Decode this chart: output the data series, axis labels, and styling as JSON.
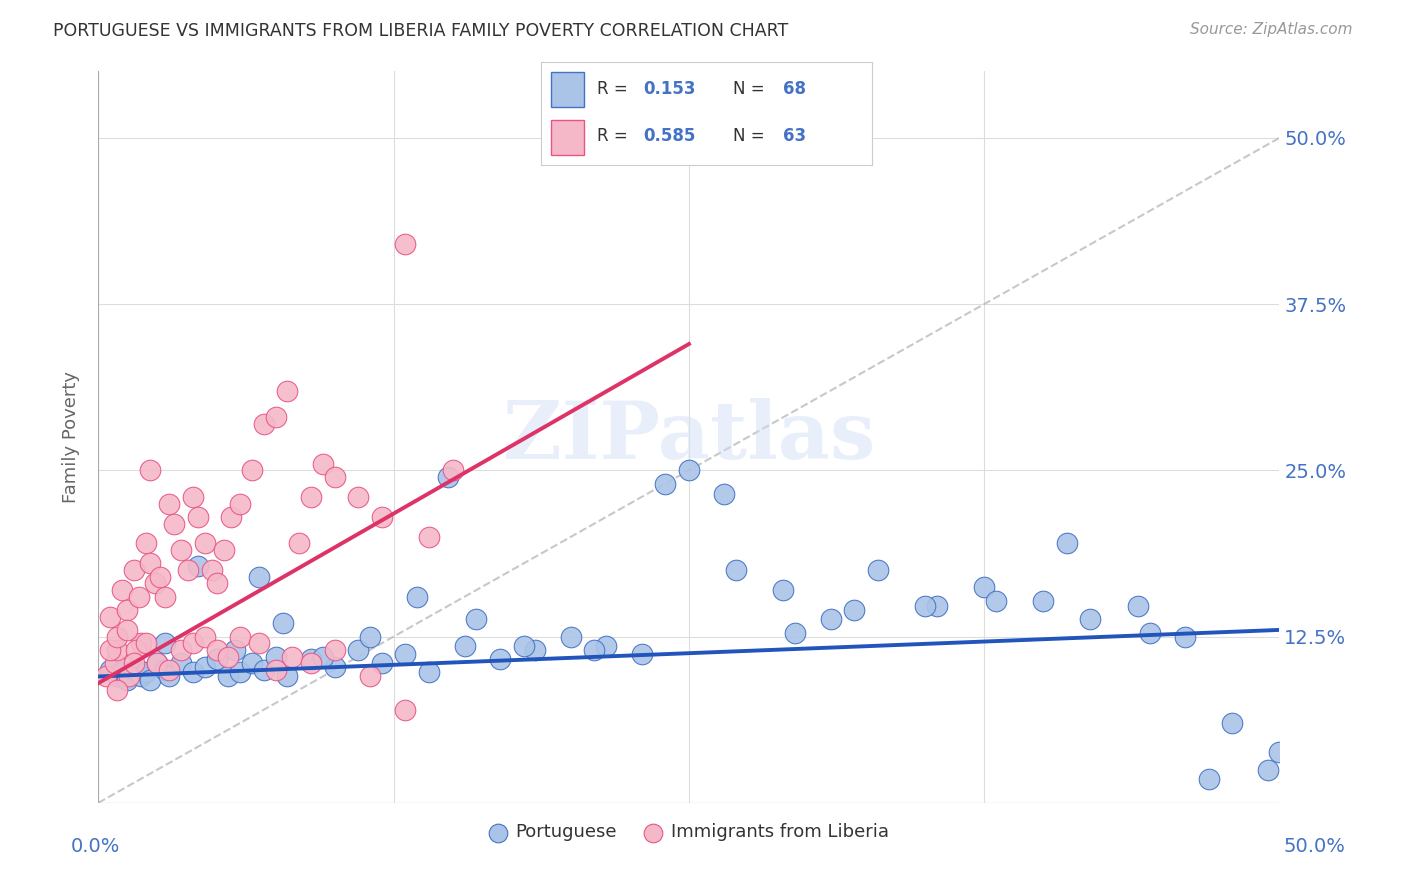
{
  "title": "PORTUGUESE VS IMMIGRANTS FROM LIBERIA FAMILY POVERTY CORRELATION CHART",
  "source": "Source: ZipAtlas.com",
  "ylabel": "Family Poverty",
  "xlim": [
    0.0,
    0.5
  ],
  "ylim": [
    0.0,
    0.55
  ],
  "ytick_positions": [
    0.0,
    0.125,
    0.25,
    0.375,
    0.5
  ],
  "ytick_labels": [
    "",
    "12.5%",
    "25.0%",
    "37.5%",
    "50.0%"
  ],
  "blue_color": "#aac4e8",
  "pink_color": "#f5b8c8",
  "blue_edge_color": "#4472c4",
  "pink_edge_color": "#e85585",
  "blue_line_color": "#2255bb",
  "pink_line_color": "#dd3366",
  "diagonal_color": "#bbbbbb",
  "R_blue": 0.153,
  "N_blue": 68,
  "R_pink": 0.585,
  "N_pink": 63,
  "legend_label_blue": "Portuguese",
  "legend_label_pink": "Immigrants from Liberia",
  "watermark": "ZIPatlas",
  "title_color": "#333333",
  "axis_label_color": "#666666",
  "tick_color": "#4472c4",
  "grid_color": "#dddddd",
  "blue_trend_x": [
    0.0,
    0.5
  ],
  "blue_trend_y": [
    0.095,
    0.13
  ],
  "pink_trend_x": [
    0.0,
    0.25
  ],
  "pink_trend_y": [
    0.09,
    0.345
  ],
  "blue_scatter_x": [
    0.005,
    0.008,
    0.01,
    0.012,
    0.015,
    0.018,
    0.02,
    0.022,
    0.025,
    0.028,
    0.03,
    0.035,
    0.04,
    0.045,
    0.05,
    0.055,
    0.06,
    0.065,
    0.07,
    0.075,
    0.08,
    0.09,
    0.1,
    0.11,
    0.12,
    0.13,
    0.14,
    0.155,
    0.17,
    0.185,
    0.2,
    0.215,
    0.23,
    0.25,
    0.27,
    0.29,
    0.31,
    0.33,
    0.355,
    0.375,
    0.4,
    0.42,
    0.44,
    0.46,
    0.48,
    0.5,
    0.028,
    0.042,
    0.058,
    0.078,
    0.095,
    0.115,
    0.135,
    0.16,
    0.18,
    0.21,
    0.24,
    0.265,
    0.295,
    0.32,
    0.35,
    0.38,
    0.41,
    0.445,
    0.47,
    0.495,
    0.068,
    0.148
  ],
  "blue_scatter_y": [
    0.1,
    0.095,
    0.098,
    0.092,
    0.1,
    0.095,
    0.098,
    0.092,
    0.105,
    0.1,
    0.095,
    0.105,
    0.098,
    0.102,
    0.108,
    0.095,
    0.098,
    0.105,
    0.1,
    0.11,
    0.095,
    0.108,
    0.102,
    0.115,
    0.105,
    0.112,
    0.098,
    0.118,
    0.108,
    0.115,
    0.125,
    0.118,
    0.112,
    0.25,
    0.175,
    0.16,
    0.138,
    0.175,
    0.148,
    0.162,
    0.152,
    0.138,
    0.148,
    0.125,
    0.06,
    0.038,
    0.12,
    0.178,
    0.115,
    0.135,
    0.11,
    0.125,
    0.155,
    0.138,
    0.118,
    0.115,
    0.24,
    0.232,
    0.128,
    0.145,
    0.148,
    0.152,
    0.195,
    0.128,
    0.018,
    0.025,
    0.17,
    0.245
  ],
  "pink_scatter_x": [
    0.003,
    0.005,
    0.007,
    0.008,
    0.01,
    0.012,
    0.013,
    0.015,
    0.017,
    0.018,
    0.02,
    0.022,
    0.024,
    0.026,
    0.028,
    0.03,
    0.032,
    0.035,
    0.038,
    0.04,
    0.042,
    0.045,
    0.048,
    0.05,
    0.053,
    0.056,
    0.06,
    0.065,
    0.07,
    0.075,
    0.08,
    0.085,
    0.09,
    0.095,
    0.1,
    0.11,
    0.12,
    0.13,
    0.14,
    0.15,
    0.005,
    0.008,
    0.012,
    0.016,
    0.02,
    0.025,
    0.03,
    0.035,
    0.04,
    0.045,
    0.05,
    0.055,
    0.06,
    0.068,
    0.075,
    0.082,
    0.09,
    0.1,
    0.115,
    0.13,
    0.008,
    0.015,
    0.022
  ],
  "pink_scatter_y": [
    0.095,
    0.14,
    0.105,
    0.115,
    0.16,
    0.145,
    0.095,
    0.175,
    0.155,
    0.12,
    0.195,
    0.18,
    0.165,
    0.17,
    0.155,
    0.225,
    0.21,
    0.19,
    0.175,
    0.23,
    0.215,
    0.195,
    0.175,
    0.165,
    0.19,
    0.215,
    0.225,
    0.25,
    0.285,
    0.29,
    0.31,
    0.195,
    0.23,
    0.255,
    0.245,
    0.23,
    0.215,
    0.42,
    0.2,
    0.25,
    0.115,
    0.125,
    0.13,
    0.115,
    0.12,
    0.105,
    0.1,
    0.115,
    0.12,
    0.125,
    0.115,
    0.11,
    0.125,
    0.12,
    0.1,
    0.11,
    0.105,
    0.115,
    0.095,
    0.07,
    0.085,
    0.105,
    0.25
  ]
}
